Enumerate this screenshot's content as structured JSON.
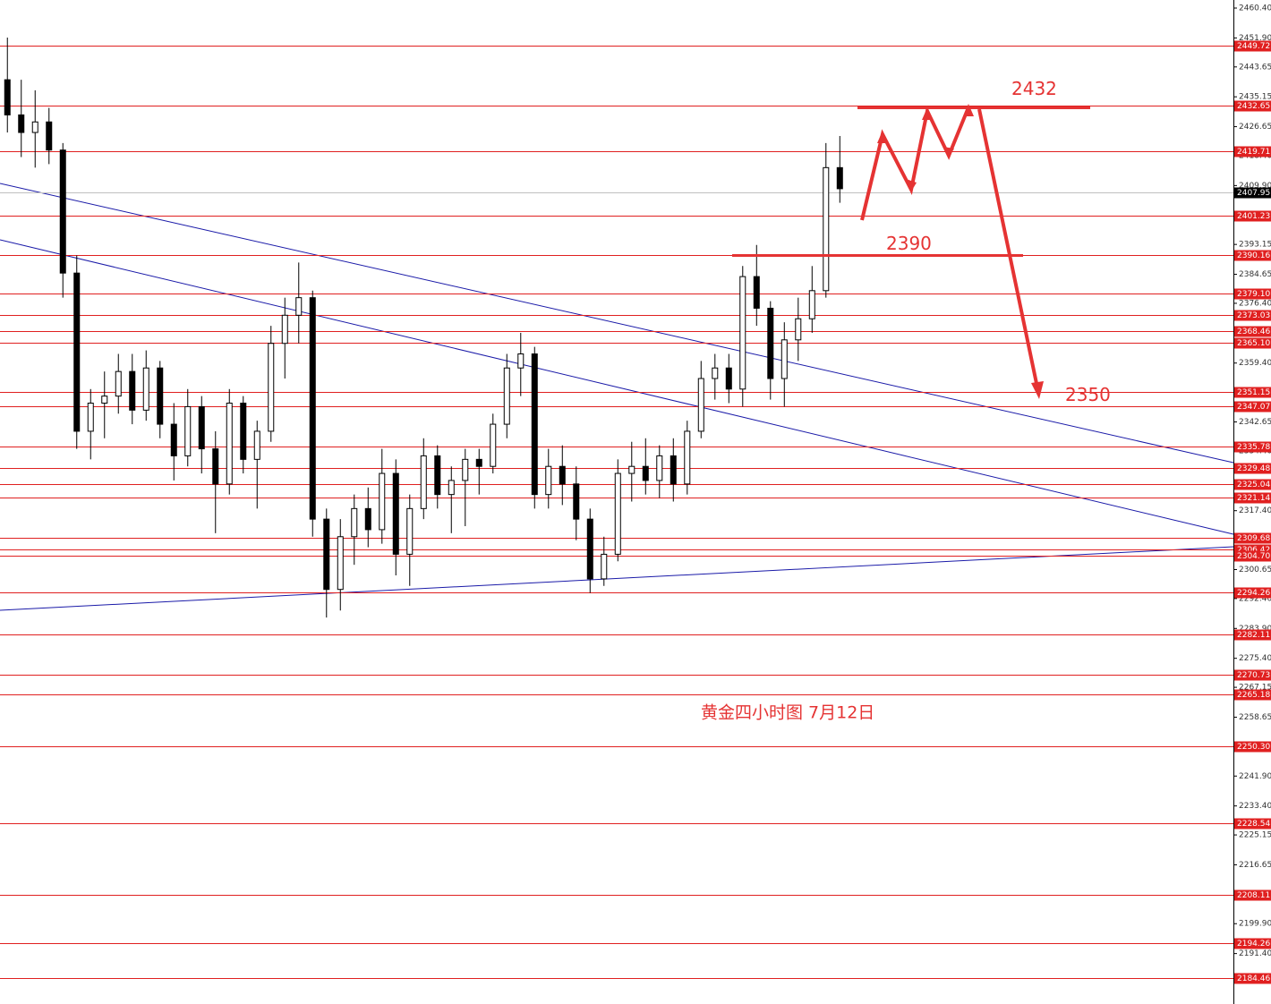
{
  "chart_data": {
    "type": "candlestick",
    "caption": "黄金四小时图  7月12日",
    "ylim": [
      2177.05,
      2462.69
    ],
    "xlim": [
      -0.5,
      88.4
    ],
    "yticks": [
      {
        "value": 2460.4,
        "label": "2460.40"
      },
      {
        "value": 2451.9,
        "label": "2451.90"
      },
      2443.65,
      2435.15,
      2426.65,
      {
        "value": 2418.4,
        "label": "2418.40"
      },
      {
        "value": 2409.9,
        "label": "2409.90"
      },
      2393.15,
      2384.65,
      {
        "value": 2376.4,
        "label": "2376.40"
      },
      {
        "value": 2359.4,
        "label": "2359.40"
      },
      2342.65,
      {
        "value": 2334.4,
        "label": "2334.40"
      },
      {
        "value": 2317.4,
        "label": "2317.40"
      },
      2300.65,
      {
        "value": 2292.4,
        "label": "2292.40"
      },
      {
        "value": 2283.9,
        "label": "2283.90"
      },
      {
        "value": 2275.4,
        "label": "2275.40"
      },
      2267.15,
      2258.65,
      {
        "value": 2241.9,
        "label": "2241.90"
      },
      {
        "value": 2233.4,
        "label": "2233.40"
      },
      2225.15,
      2216.65,
      {
        "value": 2199.9,
        "label": "2199.90"
      },
      {
        "value": 2191.4,
        "label": "2191.40"
      }
    ],
    "levels": [
      2449.72,
      2432.65,
      2419.71,
      2401.23,
      2390.16,
      {
        "value": 2379.1,
        "label": "2379.10"
      },
      2373.03,
      2368.46,
      {
        "value": 2365.1,
        "label": "2365.10"
      },
      2351.15,
      2347.07,
      2335.78,
      2329.48,
      2325.04,
      2321.14,
      2309.68,
      2306.42,
      {
        "value": 2304.7,
        "label": "2304.70"
      },
      2294.26,
      2282.11,
      2270.73,
      2265.18,
      {
        "value": 2250.3,
        "label": "2250.30"
      },
      2228.54,
      2208.11,
      2194.26,
      2184.46
    ],
    "level_color": "#e02020",
    "current_price": 2407.95,
    "trendline_color": "#1a1aa8",
    "trendlines": [
      {
        "x": [
          -0.5,
          88.4
        ],
        "y": [
          2410.5,
          2331.07
        ]
      },
      {
        "x": [
          -0.5,
          88.4
        ],
        "y": [
          2394.46,
          2310.7
        ]
      },
      {
        "x": [
          -0.5,
          88.4
        ],
        "y": [
          2289.07,
          2307.14
        ]
      }
    ],
    "annotations": [
      {
        "text": "2432",
        "value": 2432
      },
      {
        "text": "2390",
        "value": 2390
      },
      {
        "text": "2350",
        "value": 2350
      }
    ],
    "open": [
      2440,
      2430,
      2425,
      2428,
      2420,
      2385,
      2340,
      2348,
      2350,
      2357,
      2346,
      2358,
      2342,
      2333,
      2347,
      2335,
      2325,
      2348,
      2332,
      2340,
      2365,
      2373,
      2378,
      2315,
      2295,
      2310,
      2318,
      2312,
      2328,
      2305,
      2318,
      2333,
      2322,
      2326,
      2332,
      2330,
      2342,
      2358,
      2362,
      2322,
      2330,
      2325,
      2315,
      2298,
      2305,
      2328,
      2330,
      2326,
      2333,
      2325,
      2340,
      2355,
      2358,
      2352,
      2384,
      2375,
      2355,
      2366,
      2372,
      2380,
      2415
    ],
    "high": [
      2452,
      2440,
      2437,
      2432,
      2422,
      2390,
      2352,
      2357,
      2362,
      2362,
      2363,
      2360,
      2348,
      2352,
      2350,
      2340,
      2352,
      2350,
      2343,
      2370,
      2378,
      2388,
      2380,
      2318,
      2315,
      2322,
      2324,
      2335,
      2332,
      2322,
      2338,
      2336,
      2330,
      2335,
      2335,
      2345,
      2362,
      2368,
      2364,
      2335,
      2336,
      2330,
      2318,
      2310,
      2332,
      2337,
      2338,
      2336,
      2338,
      2343,
      2360,
      2362,
      2362,
      2387,
      2393,
      2377,
      2371,
      2378,
      2387,
      2422,
      2424
    ],
    "low": [
      2425,
      2418,
      2415,
      2416,
      2378,
      2335,
      2332,
      2338,
      2345,
      2342,
      2343,
      2338,
      2326,
      2330,
      2328,
      2311,
      2322,
      2328,
      2318,
      2337,
      2355,
      2365,
      2310,
      2287,
      2289,
      2302,
      2307,
      2308,
      2299,
      2296,
      2315,
      2318,
      2311,
      2313,
      2322,
      2328,
      2338,
      2350,
      2318,
      2318,
      2319,
      2309,
      2294,
      2296,
      2303,
      2320,
      2322,
      2321,
      2320,
      2322,
      2338,
      2349,
      2348,
      2347,
      2370,
      2349,
      2347,
      2360,
      2368,
      2378,
      2405
    ],
    "close": [
      2430,
      2425,
      2428,
      2420,
      2385,
      2340,
      2348,
      2350,
      2357,
      2346,
      2358,
      2342,
      2333,
      2347,
      2335,
      2325,
      2348,
      2332,
      2340,
      2365,
      2373,
      2378,
      2315,
      2295,
      2310,
      2318,
      2312,
      2328,
      2305,
      2318,
      2333,
      2322,
      2326,
      2332,
      2330,
      2342,
      2358,
      2362,
      2322,
      2330,
      2325,
      2315,
      2298,
      2305,
      2328,
      2330,
      2326,
      2333,
      2325,
      2340,
      2355,
      2358,
      2352,
      2384,
      2375,
      2355,
      2366,
      2372,
      2380,
      2415,
      2409
    ]
  }
}
